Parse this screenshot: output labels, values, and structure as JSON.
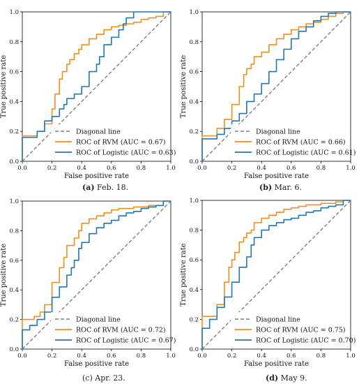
{
  "colors": {
    "rvm": "#f28e1c",
    "logistic": "#1f77b4",
    "diagonal": "#7f7f7f"
  },
  "panels": [
    {
      "caption_letter": "(a)",
      "caption_text": " Feb. 18.",
      "caption_letter_bold": true,
      "chart_data": {
        "type": "line",
        "xlabel": "False positive rate",
        "ylabel": "True positive rate",
        "xlim": [
          0,
          1
        ],
        "ylim": [
          0,
          1
        ],
        "xticks": [
          "0.0",
          "0.2",
          "0.4",
          "0.6",
          "0.8",
          "1.0"
        ],
        "yticks": [
          "0.0",
          "0.2",
          "0.4",
          "0.6",
          "0.8",
          "1.0"
        ],
        "legend": [
          "Diagonal line",
          "ROC of RVM (AUC = 0.67)",
          "ROC of Logistic (AUC = 0.63)"
        ],
        "legend_position": "lower-right",
        "series": [
          {
            "name": "ROC of RVM (AUC = 0.67)",
            "x": [
              0,
              0,
              0.1,
              0.15,
              0.2,
              0.22,
              0.25,
              0.27,
              0.3,
              0.32,
              0.35,
              0.38,
              0.4,
              0.45,
              0.5,
              0.55,
              0.6,
              0.65,
              0.7,
              0.75,
              0.8,
              0.85,
              0.9,
              0.95,
              1.0
            ],
            "y": [
              0,
              0.16,
              0.17,
              0.2,
              0.25,
              0.35,
              0.45,
              0.55,
              0.6,
              0.65,
              0.68,
              0.72,
              0.75,
              0.78,
              0.82,
              0.85,
              0.88,
              0.9,
              0.91,
              0.92,
              0.93,
              0.95,
              0.96,
              0.97,
              1.0
            ]
          },
          {
            "name": "ROC of Logistic (AUC = 0.63)",
            "x": [
              0,
              0,
              0.1,
              0.15,
              0.2,
              0.25,
              0.28,
              0.3,
              0.35,
              0.4,
              0.45,
              0.5,
              0.52,
              0.55,
              0.6,
              0.65,
              0.68,
              0.7,
              0.75,
              0.8,
              0.85,
              0.9,
              0.95,
              1.0
            ],
            "y": [
              0,
              0.15,
              0.16,
              0.2,
              0.27,
              0.3,
              0.35,
              0.38,
              0.42,
              0.45,
              0.5,
              0.6,
              0.65,
              0.7,
              0.78,
              0.83,
              0.88,
              0.92,
              0.96,
              1.0,
              1.0,
              1.0,
              1.0,
              1.0
            ]
          }
        ]
      }
    },
    {
      "caption_letter": "(b)",
      "caption_text": " Mar. 6.",
      "caption_letter_bold": true,
      "chart_data": {
        "type": "line",
        "xlabel": "False positive rate",
        "ylabel": "True positive rate",
        "xlim": [
          0,
          1
        ],
        "ylim": [
          0,
          1
        ],
        "xticks": [
          "0.0",
          "0.2",
          "0.4",
          "0.6",
          "0.8",
          "1.0"
        ],
        "yticks": [
          "0.0",
          "0.2",
          "0.4",
          "0.6",
          "0.8",
          "1.0"
        ],
        "legend": [
          "Diagonal line",
          "ROC of RVM (AUC = 0.66)",
          "ROC of Logistic (AUC = 0.61)"
        ],
        "legend_position": "lower-right",
        "series": [
          {
            "name": "ROC of RVM (AUC = 0.66)",
            "x": [
              0,
              0,
              0.1,
              0.15,
              0.2,
              0.25,
              0.28,
              0.3,
              0.33,
              0.35,
              0.4,
              0.45,
              0.5,
              0.55,
              0.6,
              0.65,
              0.7,
              0.75,
              0.8,
              0.85,
              0.9,
              0.95,
              1.0
            ],
            "y": [
              0,
              0.15,
              0.17,
              0.22,
              0.28,
              0.38,
              0.5,
              0.58,
              0.62,
              0.65,
              0.7,
              0.73,
              0.78,
              0.82,
              0.85,
              0.88,
              0.9,
              0.92,
              0.93,
              0.95,
              0.97,
              0.99,
              1.0
            ]
          },
          {
            "name": "ROC of Logistic (AUC = 0.61)",
            "x": [
              0,
              0,
              0.1,
              0.15,
              0.2,
              0.25,
              0.3,
              0.35,
              0.4,
              0.45,
              0.5,
              0.55,
              0.6,
              0.65,
              0.7,
              0.75,
              0.8,
              0.85,
              0.9,
              0.95,
              1.0
            ],
            "y": [
              0,
              0.13,
              0.15,
              0.18,
              0.22,
              0.27,
              0.32,
              0.4,
              0.45,
              0.52,
              0.6,
              0.68,
              0.75,
              0.82,
              0.87,
              0.9,
              0.94,
              0.97,
              0.99,
              1.0,
              1.0
            ]
          }
        ]
      }
    },
    {
      "caption_letter": "(c)",
      "caption_text": " Apr. 23.",
      "caption_letter_bold": false,
      "chart_data": {
        "type": "line",
        "xlabel": "False positive rate",
        "ylabel": "True positive rate",
        "xlim": [
          0,
          1
        ],
        "ylim": [
          0,
          1
        ],
        "xticks": [
          "0.0",
          "0.2",
          "0.4",
          "0.6",
          "0.8",
          "1.0"
        ],
        "yticks": [
          "0.0",
          "0.2",
          "0.4",
          "0.6",
          "0.8",
          "1.0"
        ],
        "legend": [
          "Diagonal line",
          "ROC of RVM (AUC = 0.72)",
          "ROC of Logistic (AUC = 0.67)"
        ],
        "legend_position": "lower-right",
        "series": [
          {
            "name": "ROC of RVM (AUC = 0.72)",
            "x": [
              0,
              0,
              0.08,
              0.12,
              0.15,
              0.2,
              0.25,
              0.28,
              0.3,
              0.35,
              0.38,
              0.4,
              0.45,
              0.5,
              0.55,
              0.6,
              0.65,
              0.7,
              0.75,
              0.8,
              0.85,
              0.9,
              0.95,
              1.0
            ],
            "y": [
              0,
              0.18,
              0.2,
              0.22,
              0.25,
              0.3,
              0.45,
              0.55,
              0.62,
              0.7,
              0.75,
              0.8,
              0.85,
              0.88,
              0.9,
              0.92,
              0.94,
              0.95,
              0.95,
              0.96,
              0.96,
              0.97,
              0.97,
              1.0
            ]
          },
          {
            "name": "ROC of Logistic (AUC = 0.67)",
            "x": [
              0,
              0,
              0.05,
              0.1,
              0.15,
              0.2,
              0.25,
              0.3,
              0.33,
              0.35,
              0.38,
              0.4,
              0.45,
              0.5,
              0.55,
              0.6,
              0.65,
              0.7,
              0.75,
              0.8,
              0.85,
              0.9,
              0.95,
              1.0
            ],
            "y": [
              0,
              0.13,
              0.13,
              0.16,
              0.2,
              0.25,
              0.35,
              0.42,
              0.5,
              0.55,
              0.6,
              0.68,
              0.72,
              0.78,
              0.82,
              0.85,
              0.87,
              0.9,
              0.92,
              0.93,
              0.95,
              0.96,
              0.97,
              1.0
            ]
          }
        ]
      }
    },
    {
      "caption_letter": "(d)",
      "caption_text": " May 9.",
      "caption_letter_bold": true,
      "chart_data": {
        "type": "line",
        "xlabel": "False positive rate",
        "ylabel": "True positive rate",
        "xlim": [
          0,
          1
        ],
        "ylim": [
          0,
          1
        ],
        "xticks": [
          "0.0",
          "0.2",
          "0.4",
          "0.6",
          "0.8",
          "1.0"
        ],
        "yticks": [
          "0.0",
          "0.2",
          "0.4",
          "0.6",
          "0.8",
          "1.0"
        ],
        "legend": [
          "Diagonal line",
          "ROC of RVM (AUC = 0.75)",
          "ROC of Logistic (AUC = 0.70)"
        ],
        "legend_position": "lower-right",
        "series": [
          {
            "name": "ROC of RVM (AUC = 0.75)",
            "x": [
              0,
              0,
              0.1,
              0.15,
              0.18,
              0.2,
              0.22,
              0.25,
              0.28,
              0.3,
              0.33,
              0.35,
              0.4,
              0.45,
              0.5,
              0.55,
              0.6,
              0.65,
              0.7,
              0.75,
              0.8,
              0.85,
              0.9,
              0.95,
              1.0
            ],
            "y": [
              0,
              0.2,
              0.22,
              0.3,
              0.45,
              0.55,
              0.6,
              0.65,
              0.72,
              0.75,
              0.78,
              0.8,
              0.85,
              0.88,
              0.9,
              0.92,
              0.94,
              0.95,
              0.96,
              0.97,
              0.97,
              0.98,
              0.98,
              0.99,
              1.0
            ]
          },
          {
            "name": "ROC of Logistic (AUC = 0.70)",
            "x": [
              0,
              0,
              0.05,
              0.1,
              0.15,
              0.2,
              0.25,
              0.3,
              0.33,
              0.35,
              0.4,
              0.45,
              0.5,
              0.55,
              0.6,
              0.65,
              0.7,
              0.75,
              0.8,
              0.85,
              0.9,
              0.95,
              1.0
            ],
            "y": [
              0,
              0.14,
              0.14,
              0.2,
              0.28,
              0.35,
              0.45,
              0.55,
              0.62,
              0.7,
              0.75,
              0.8,
              0.83,
              0.85,
              0.87,
              0.88,
              0.9,
              0.92,
              0.93,
              0.95,
              0.96,
              0.97,
              1.0
            ]
          }
        ]
      }
    }
  ]
}
